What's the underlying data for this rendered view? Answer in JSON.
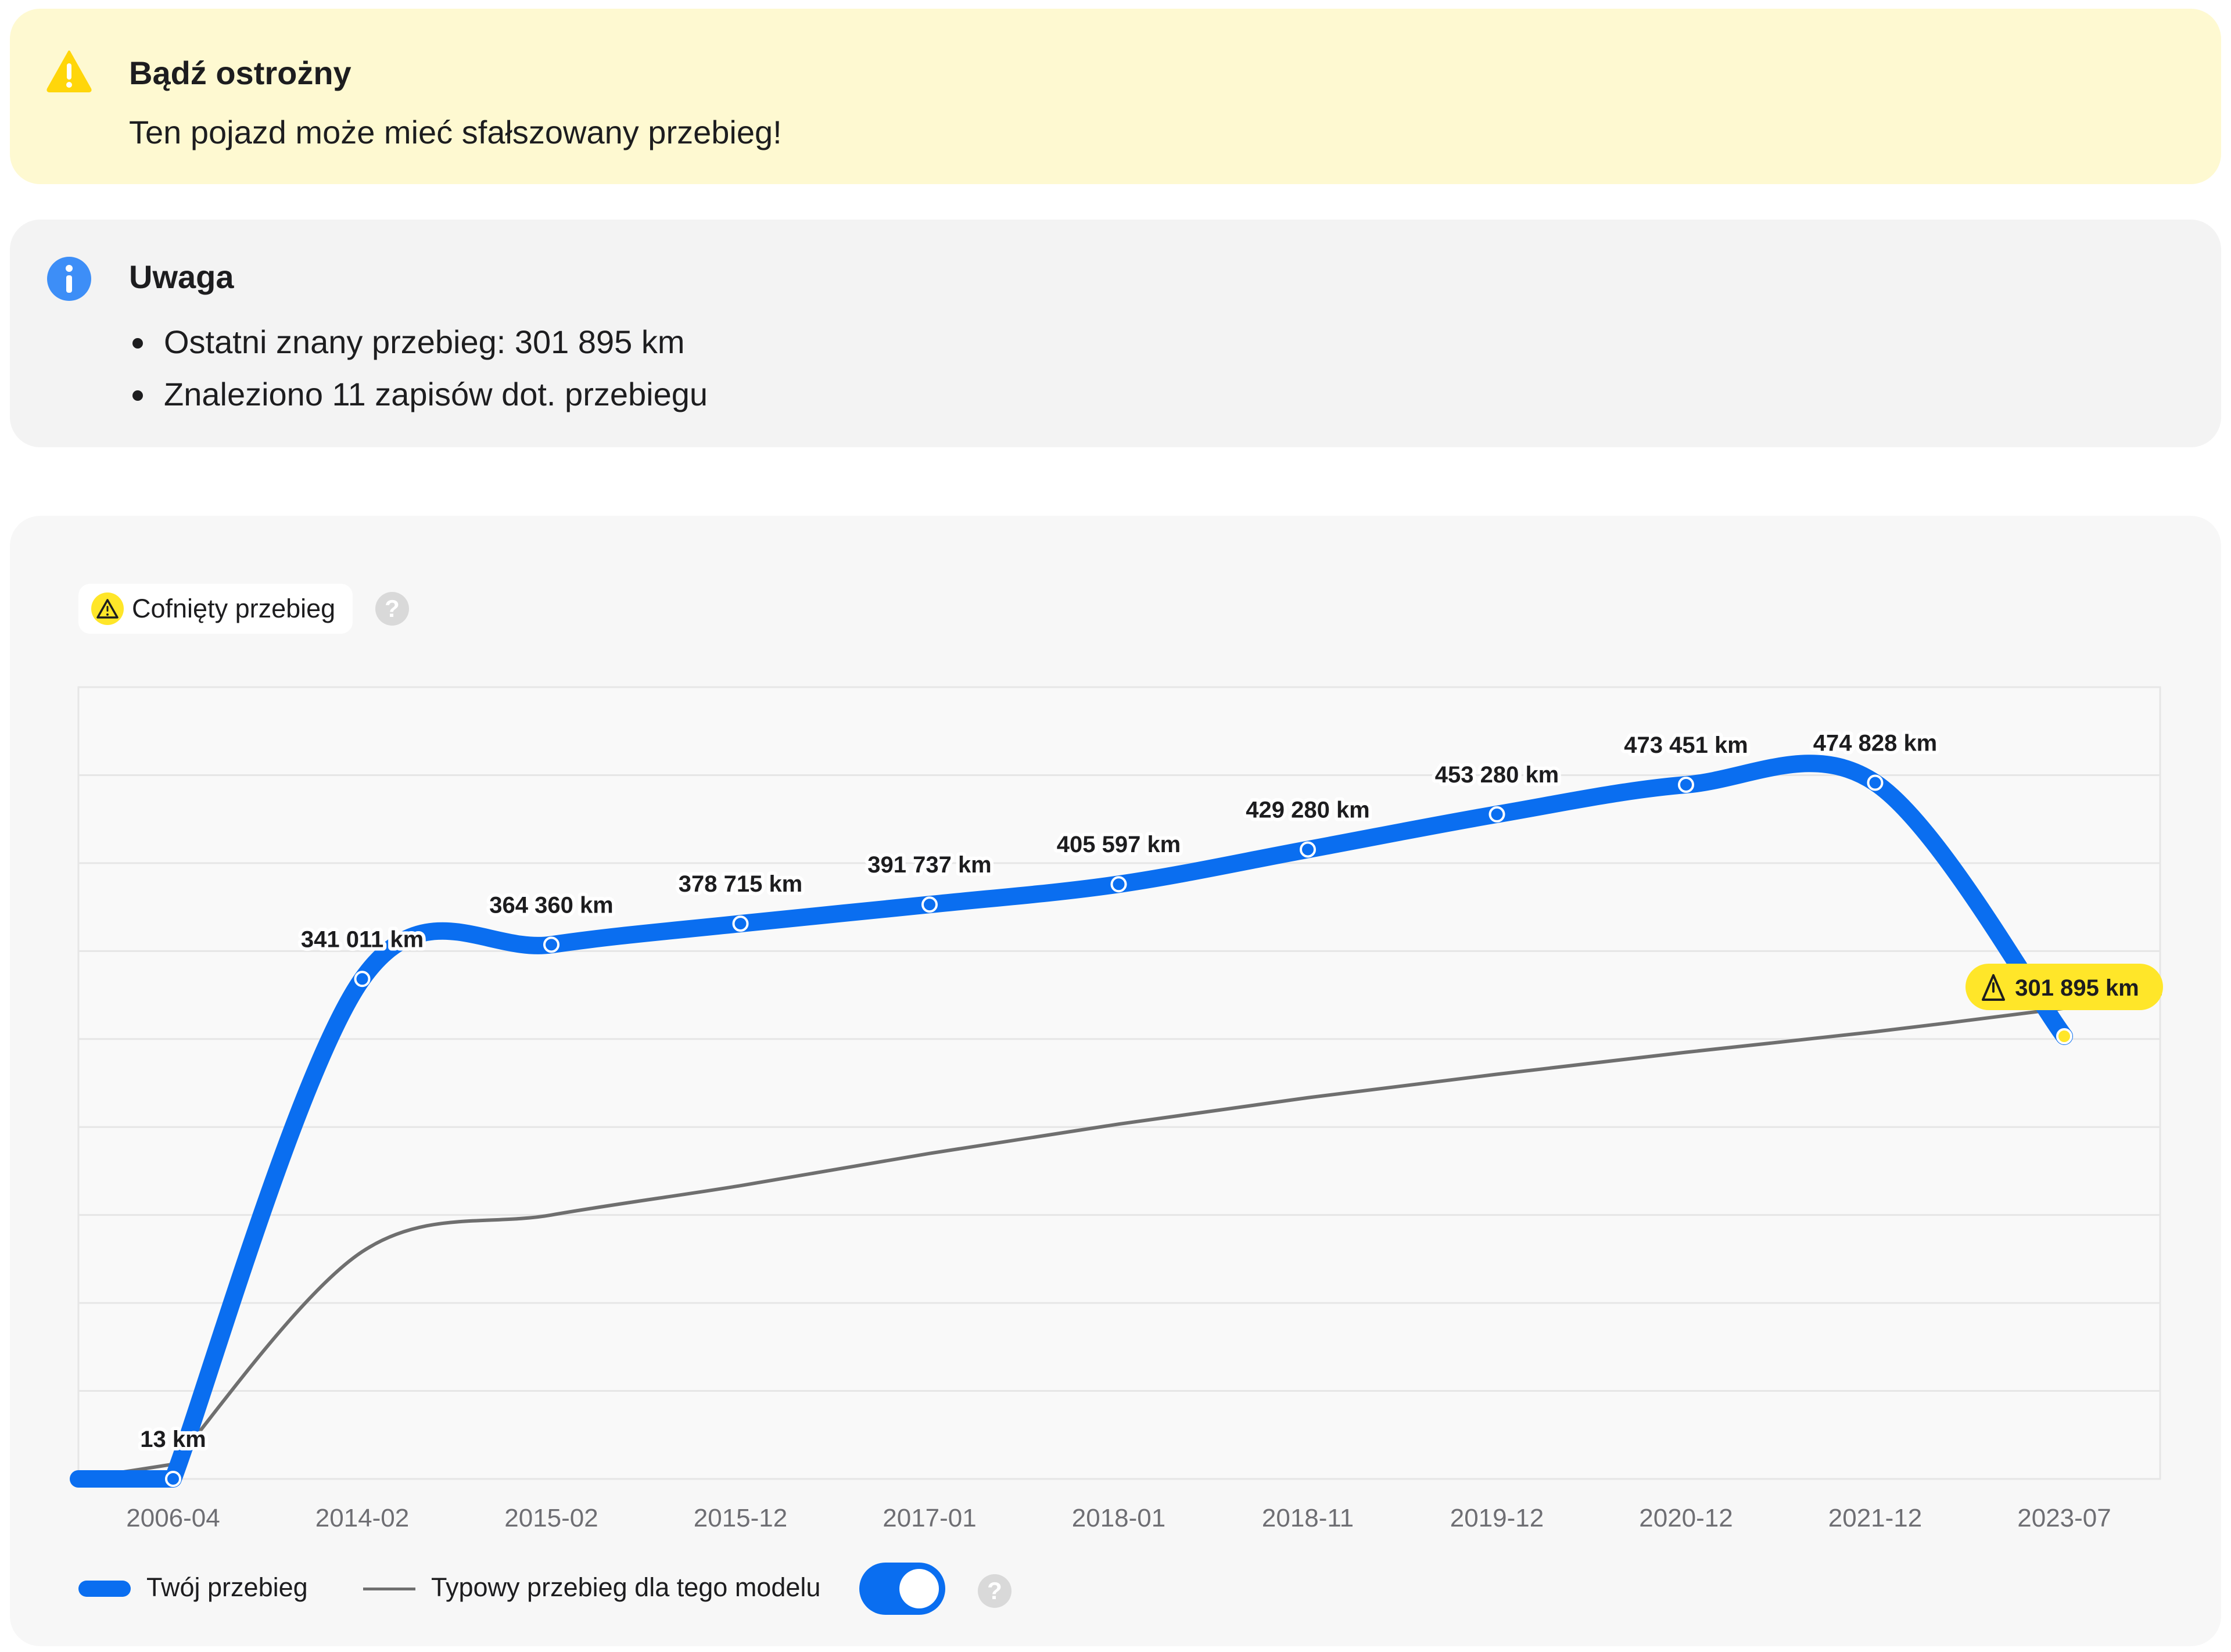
{
  "warning": {
    "title": "Bądź ostrożny",
    "text": "Ten pojazd może mieć sfałszowany przebieg!",
    "icon": "warning-icon",
    "color": "#fef9d1"
  },
  "info": {
    "title": "Uwaga",
    "icon": "info-icon",
    "items": [
      "Ostatni znany przebieg: 301 895 km",
      "Znaleziono 11 zapisów dot. przebiegu"
    ]
  },
  "badge": {
    "label": "Cofnięty przebieg",
    "icon": "warning-triangle-icon"
  },
  "help_label": "?",
  "legend": {
    "yours": "Twój przebieg",
    "typical": "Typowy przebieg dla tego modelu",
    "typical_toggle_on": true
  },
  "colors": {
    "mileage_line": "#0a6ef0",
    "typical_line": "#6f6f6f",
    "rollback_highlight": "#ffe629",
    "grid": "#e6e6e6"
  },
  "chart_data": {
    "type": "line",
    "categories": [
      "2006-04",
      "2014-02",
      "2015-02",
      "2015-12",
      "2017-01",
      "2018-01",
      "2018-11",
      "2019-12",
      "2020-12",
      "2021-12",
      "2023-07"
    ],
    "ylim": [
      0,
      540000
    ],
    "grid": true,
    "legend_position": "bottom-left",
    "series": [
      {
        "name": "Twój przebieg",
        "values": [
          13,
          341011,
          364360,
          378715,
          391737,
          405597,
          429280,
          453280,
          473451,
          474828,
          301895
        ],
        "labels": [
          "13 km",
          "341 011 km",
          "364 360 km",
          "378 715 km",
          "391 737 km",
          "405 597 km",
          "429 280 km",
          "453 280 km",
          "473 451 km",
          "474 828 km",
          "301 895 km"
        ],
        "flagged_index": 10
      },
      {
        "name": "Typowy przebieg dla tego modelu",
        "values": [
          10000,
          155000,
          180000,
          200000,
          222000,
          242000,
          260000,
          276000,
          291000,
          305000,
          321000
        ]
      }
    ]
  }
}
